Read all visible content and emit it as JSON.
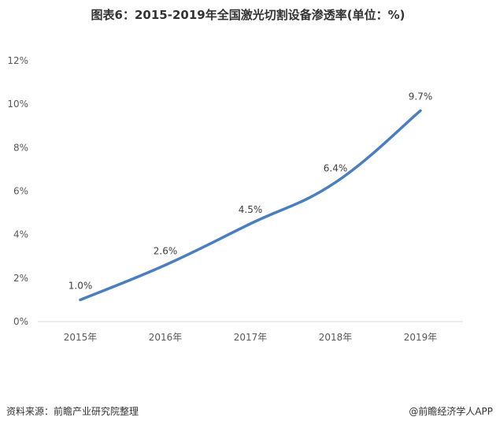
{
  "chart_data": {
    "type": "line",
    "title": "图表6：2015-2019年全国激光切割设备渗透率(单位：%)",
    "categories": [
      "2015年",
      "2016年",
      "2017年",
      "2018年",
      "2019年"
    ],
    "series": [
      {
        "values": [
          1.0,
          2.6,
          4.5,
          6.4,
          9.7
        ],
        "color": "#4a7ebf"
      }
    ],
    "data_labels": [
      "1.0%",
      "2.6%",
      "4.5%",
      "6.4%",
      "9.7%"
    ],
    "yticks": [
      "0%",
      "2%",
      "4%",
      "6%",
      "8%",
      "10%",
      "12%"
    ],
    "ylim": [
      0,
      12
    ],
    "xlabel": "",
    "ylabel": "",
    "grid": false,
    "smooth": true
  },
  "footer": {
    "source": "资料来源：前瞻产业研究院整理",
    "brand": "@前瞻经济学人APP"
  }
}
